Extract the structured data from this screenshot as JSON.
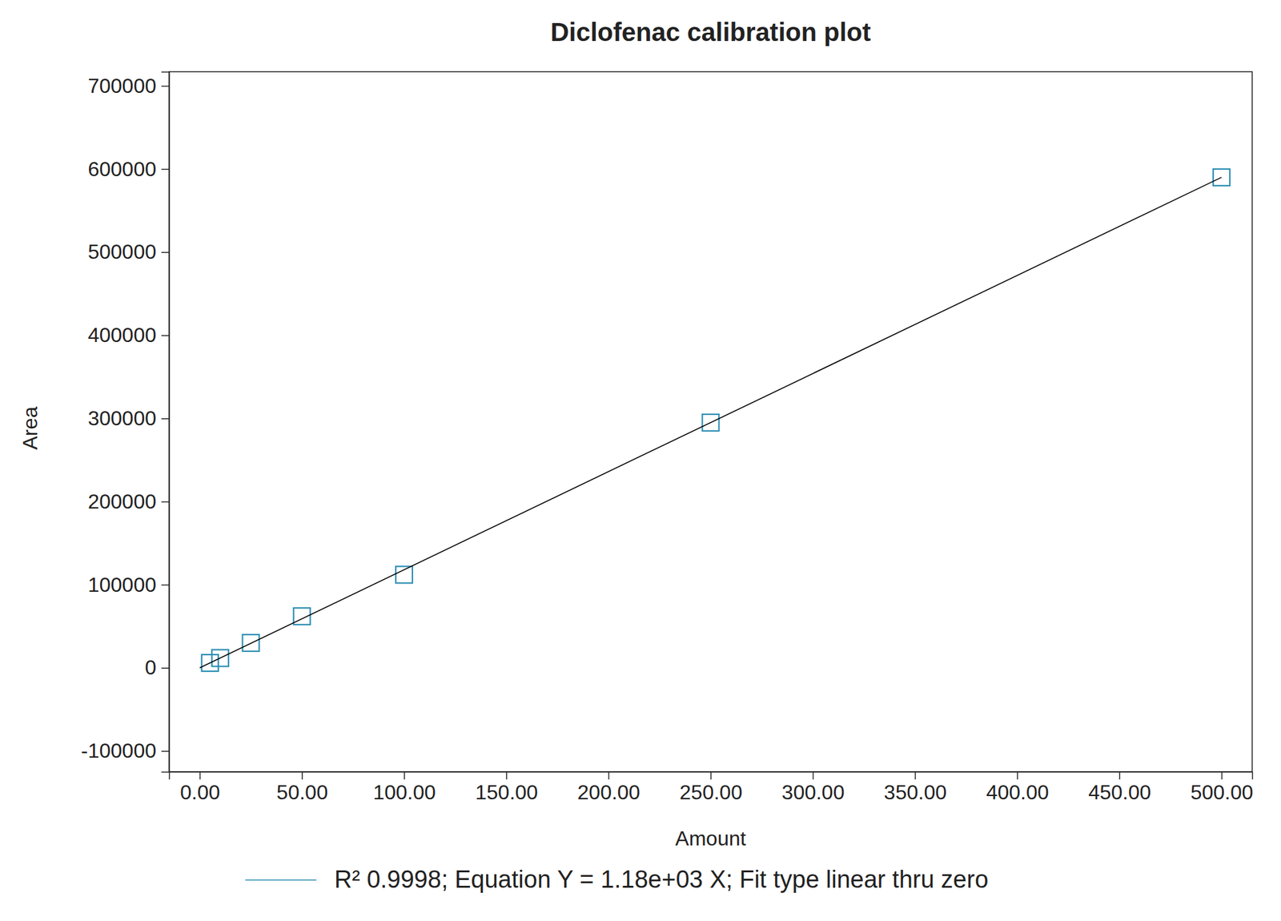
{
  "chart_data": {
    "type": "scatter",
    "title": "Diclofenac calibration plot",
    "x_label": "Amount",
    "y_label": "Area",
    "xlim": [
      -15,
      515
    ],
    "xticks": [
      {
        "value": 0,
        "label": "0.00"
      },
      {
        "value": 50,
        "label": "50.00"
      },
      {
        "value": 100,
        "label": "100.00"
      },
      {
        "value": 150,
        "label": "150.00"
      },
      {
        "value": 200,
        "label": "200.00"
      },
      {
        "value": 250,
        "label": "250.00"
      },
      {
        "value": 300,
        "label": "300.00"
      },
      {
        "value": 350,
        "label": "350.00"
      },
      {
        "value": 400,
        "label": "400.00"
      },
      {
        "value": 450,
        "label": "450.00"
      },
      {
        "value": 500,
        "label": "500.00"
      }
    ],
    "ylim": [
      -125000,
      717000
    ],
    "yticks": [
      -100000,
      0,
      100000,
      200000,
      300000,
      400000,
      500000,
      600000,
      700000
    ],
    "grid": false,
    "legend": "bottom",
    "series": [
      {
        "name": "R² 0.9998; Equation Y = 1.18e+03 X; Fit type linear thru zero",
        "type": "scatter",
        "marker": "square",
        "color": "#2a8db3",
        "x": [
          5,
          10,
          25,
          50,
          100,
          250,
          500
        ],
        "values": [
          5900,
          11800,
          30000,
          62000,
          112000,
          295000,
          590000
        ]
      },
      {
        "type": "line",
        "line_style": "solid",
        "color": "#000000",
        "x": [
          0,
          500
        ],
        "values": [
          0,
          590000
        ]
      }
    ]
  }
}
